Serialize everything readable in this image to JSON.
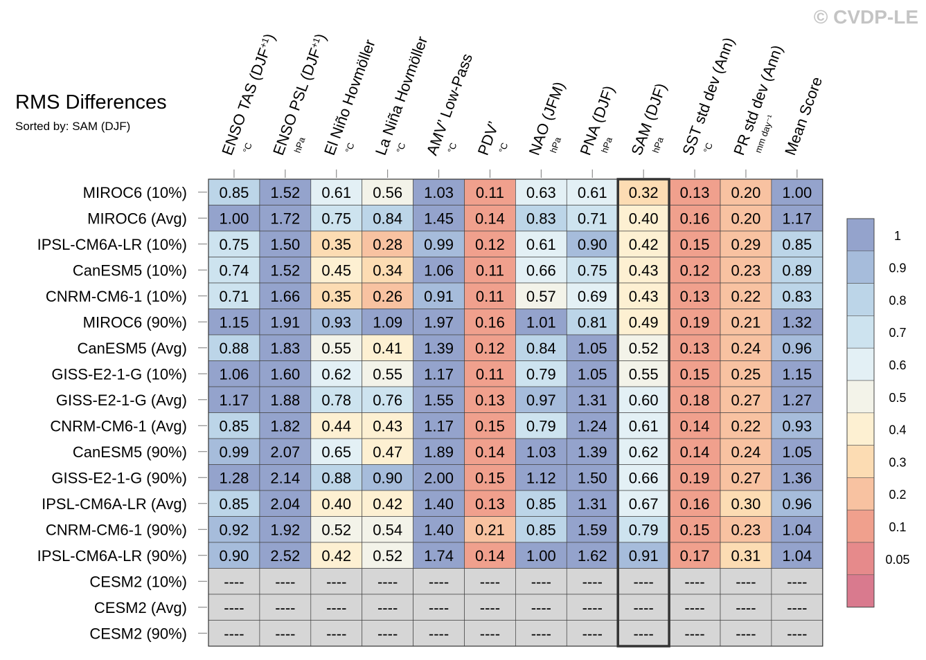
{
  "watermark": "© CVDP-LE",
  "chart_data": {
    "type": "heatmap",
    "title": "RMS Differences",
    "subtitle": "Sorted by: SAM (DJF)",
    "highlight_column": "SAM (DJF)",
    "columns": [
      {
        "name": "ENSO TAS (DJF",
        "sup": "+1",
        "close": ")",
        "unit": "°C"
      },
      {
        "name": "ENSO PSL (DJF",
        "sup": "+1",
        "close": ")",
        "unit": "hPa"
      },
      {
        "name": "El Niño Hovmöller",
        "sup": "",
        "close": "",
        "unit": "°C"
      },
      {
        "name": "La Niña Hovmöller",
        "sup": "",
        "close": "",
        "unit": "°C"
      },
      {
        "name": "AMV’ Low-Pass",
        "sup": "",
        "close": "",
        "unit": "°C"
      },
      {
        "name": "PDV’",
        "sup": "",
        "close": "",
        "unit": "°C"
      },
      {
        "name": "NAO (JFM)",
        "sup": "",
        "close": "",
        "unit": "hPa"
      },
      {
        "name": "PNA (DJF)",
        "sup": "",
        "close": "",
        "unit": "hPa"
      },
      {
        "name": "SAM (DJF)",
        "sup": "",
        "close": "",
        "unit": "hPa"
      },
      {
        "name": "SST std dev (Ann)",
        "sup": "",
        "close": "",
        "unit": "°C"
      },
      {
        "name": "PR std dev (Ann)",
        "sup": "",
        "close": "",
        "unit": "mm day⁻¹"
      },
      {
        "name": "Mean Score",
        "sup": "",
        "close": "",
        "unit": ""
      }
    ],
    "rows": [
      {
        "label": "MIROC6 (10%)",
        "values": [
          0.85,
          1.52,
          0.61,
          0.56,
          1.03,
          0.11,
          0.63,
          0.61,
          0.32,
          0.13,
          0.2,
          1.0
        ]
      },
      {
        "label": "MIROC6 (Avg)",
        "values": [
          1.0,
          1.72,
          0.75,
          0.84,
          1.45,
          0.14,
          0.83,
          0.71,
          0.4,
          0.16,
          0.2,
          1.17
        ]
      },
      {
        "label": "IPSL-CM6A-LR (10%)",
        "values": [
          0.75,
          1.5,
          0.35,
          0.28,
          0.99,
          0.12,
          0.61,
          0.9,
          0.42,
          0.15,
          0.29,
          0.85
        ]
      },
      {
        "label": "CanESM5 (10%)",
        "values": [
          0.74,
          1.52,
          0.45,
          0.34,
          1.06,
          0.11,
          0.66,
          0.75,
          0.43,
          0.12,
          0.23,
          0.89
        ]
      },
      {
        "label": "CNRM-CM6-1 (10%)",
        "values": [
          0.71,
          1.66,
          0.35,
          0.26,
          0.91,
          0.11,
          0.57,
          0.69,
          0.43,
          0.13,
          0.22,
          0.83
        ]
      },
      {
        "label": "MIROC6 (90%)",
        "values": [
          1.15,
          1.91,
          0.93,
          1.09,
          1.97,
          0.16,
          1.01,
          0.81,
          0.49,
          0.19,
          0.21,
          1.32
        ]
      },
      {
        "label": "CanESM5 (Avg)",
        "values": [
          0.88,
          1.83,
          0.55,
          0.41,
          1.39,
          0.12,
          0.84,
          1.05,
          0.52,
          0.13,
          0.24,
          0.96
        ]
      },
      {
        "label": "GISS-E2-1-G (10%)",
        "values": [
          1.06,
          1.6,
          0.62,
          0.55,
          1.17,
          0.11,
          0.79,
          1.05,
          0.55,
          0.15,
          0.25,
          1.15
        ]
      },
      {
        "label": "GISS-E2-1-G (Avg)",
        "values": [
          1.17,
          1.88,
          0.78,
          0.76,
          1.55,
          0.13,
          0.97,
          1.31,
          0.6,
          0.18,
          0.27,
          1.27
        ]
      },
      {
        "label": "CNRM-CM6-1 (Avg)",
        "values": [
          0.85,
          1.82,
          0.44,
          0.43,
          1.17,
          0.15,
          0.79,
          1.24,
          0.61,
          0.14,
          0.22,
          0.93
        ]
      },
      {
        "label": "CanESM5 (90%)",
        "values": [
          0.99,
          2.07,
          0.65,
          0.47,
          1.89,
          0.14,
          1.03,
          1.39,
          0.62,
          0.14,
          0.24,
          1.05
        ]
      },
      {
        "label": "GISS-E2-1-G (90%)",
        "values": [
          1.28,
          2.14,
          0.88,
          0.9,
          2.0,
          0.15,
          1.12,
          1.5,
          0.66,
          0.19,
          0.27,
          1.36
        ]
      },
      {
        "label": "IPSL-CM6A-LR (Avg)",
        "values": [
          0.85,
          2.04,
          0.4,
          0.42,
          1.4,
          0.13,
          0.85,
          1.31,
          0.67,
          0.16,
          0.3,
          0.96
        ]
      },
      {
        "label": "CNRM-CM6-1 (90%)",
        "values": [
          0.92,
          1.92,
          0.52,
          0.54,
          1.4,
          0.21,
          0.85,
          1.59,
          0.79,
          0.15,
          0.23,
          1.04
        ]
      },
      {
        "label": "IPSL-CM6A-LR (90%)",
        "values": [
          0.9,
          2.52,
          0.42,
          0.52,
          1.74,
          0.14,
          1.0,
          1.62,
          0.91,
          0.17,
          0.31,
          1.04
        ]
      },
      {
        "label": "CESM2 (10%)",
        "values": [
          null,
          null,
          null,
          null,
          null,
          null,
          null,
          null,
          null,
          null,
          null,
          null
        ]
      },
      {
        "label": "CESM2 (Avg)",
        "values": [
          null,
          null,
          null,
          null,
          null,
          null,
          null,
          null,
          null,
          null,
          null,
          null
        ]
      },
      {
        "label": "CESM2 (90%)",
        "values": [
          null,
          null,
          null,
          null,
          null,
          null,
          null,
          null,
          null,
          null,
          null,
          null
        ]
      }
    ],
    "missing_text": "----",
    "colorbar": {
      "tick_labels": [
        "1",
        "0.9",
        "0.8",
        "0.7",
        "0.6",
        "0.5",
        "0.4",
        "0.3",
        "0.2",
        "0.1",
        "0.05"
      ],
      "bin_colors": [
        "#94a3cc",
        "#a6bcdb",
        "#bcd5e8",
        "#cde3ef",
        "#e3f0f5",
        "#f3f3e9",
        "#fdf0d2",
        "#fcdcb3",
        "#f8c2a1",
        "#f0a08d",
        "#e68a8b",
        "#d97a8e"
      ],
      "bounds": [
        0.05,
        0.1,
        0.2,
        0.3,
        0.4,
        0.5,
        0.6,
        0.7,
        0.8,
        0.9,
        1.0
      ]
    },
    "missing_color": "#d6d6d6"
  }
}
